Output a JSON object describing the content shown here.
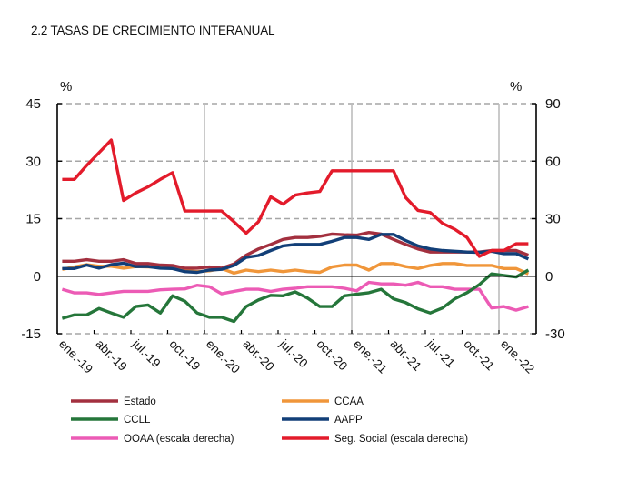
{
  "title": "2.2 TASAS  DE CRECIMIENTO INTERANUAL",
  "chart_data": {
    "type": "line",
    "title": "2.2 TASAS  DE CRECIMIENTO INTERANUAL",
    "left_unit": "%",
    "right_unit": "%",
    "ylim_left": [
      -15,
      45
    ],
    "ylim_right": [
      -30,
      90
    ],
    "yticks_left": [
      "45",
      "30",
      "15",
      "0",
      "-15"
    ],
    "yticks_right": [
      "90",
      "60",
      "30",
      "0",
      "-30"
    ],
    "grid": "horizontal dashed; vertical solid at each January",
    "legend_position": "bottom",
    "x_tick_labels": [
      "ene.-19",
      "abr.-19",
      "jul.-19",
      "oct.-19",
      "ene.-20",
      "abr.-20",
      "jul.-20",
      "oct.-20",
      "ene.-21",
      "abr.-21",
      "jul.-21",
      "oct.-21",
      "ene.-22"
    ],
    "x_start": "ene.-19",
    "x_frequency": "monthly",
    "series": [
      {
        "name": "Estado",
        "axis": "left",
        "color": "#a3303f",
        "values": [
          3.9,
          3.9,
          4.3,
          3.9,
          3.9,
          4.3,
          3.3,
          3.3,
          2.9,
          2.8,
          2.1,
          2.1,
          2.4,
          2.1,
          3.2,
          5.5,
          7.1,
          8.3,
          9.6,
          10.1,
          10.1,
          10.4,
          11.0,
          10.8,
          10.7,
          11.4,
          11.0,
          9.6,
          8.3,
          7.1,
          6.3,
          6.3,
          6.3,
          6.3,
          6.3,
          6.7,
          6.7,
          6.7,
          5.5
        ]
      },
      {
        "name": "CCAA",
        "axis": "left",
        "color": "#f0963a",
        "values": [
          1.8,
          2.4,
          3.0,
          2.6,
          2.6,
          2.1,
          2.5,
          2.4,
          2.4,
          2.0,
          1.5,
          1.2,
          1.4,
          2.0,
          0.8,
          1.6,
          1.2,
          1.6,
          1.2,
          1.6,
          1.2,
          1.0,
          2.4,
          2.9,
          2.9,
          1.6,
          3.3,
          3.3,
          2.5,
          2.0,
          2.8,
          3.3,
          3.3,
          2.8,
          2.8,
          2.8,
          2.0,
          2.0,
          0.6
        ]
      },
      {
        "name": "CCLL",
        "axis": "left",
        "color": "#25763a",
        "values": [
          -11.0,
          -10.1,
          -10.1,
          -8.4,
          -9.6,
          -10.7,
          -7.9,
          -7.5,
          -9.6,
          -5.1,
          -6.5,
          -9.6,
          -10.7,
          -10.7,
          -11.8,
          -7.9,
          -6.2,
          -5.0,
          -5.1,
          -4.1,
          -5.7,
          -7.9,
          -7.9,
          -5.1,
          -4.7,
          -4.3,
          -3.4,
          -5.9,
          -6.9,
          -8.5,
          -9.6,
          -8.3,
          -5.9,
          -4.3,
          -2.2,
          0.6,
          0.2,
          -0.2,
          1.6
        ]
      },
      {
        "name": "AAPP",
        "axis": "left",
        "color": "#123f78",
        "values": [
          2.0,
          2.0,
          2.9,
          2.1,
          3.0,
          3.4,
          2.5,
          2.5,
          2.1,
          2.0,
          1.2,
          1.0,
          1.6,
          1.8,
          2.8,
          4.9,
          5.4,
          6.7,
          7.9,
          8.3,
          8.3,
          8.3,
          9.1,
          10.1,
          10.1,
          9.6,
          10.9,
          10.9,
          9.3,
          7.9,
          7.1,
          6.7,
          6.5,
          6.3,
          6.2,
          6.5,
          5.9,
          5.9,
          4.5
        ]
      },
      {
        "name": "OOAA (escala derecha)",
        "axis": "right",
        "color": "#ec5bb5",
        "values": [
          -6.8,
          -8.7,
          -8.7,
          -9.5,
          -8.7,
          -7.9,
          -7.9,
          -7.9,
          -7.1,
          -6.8,
          -6.6,
          -4.7,
          -5.5,
          -9.2,
          -7.9,
          -6.8,
          -6.8,
          -7.9,
          -6.8,
          -6.3,
          -5.5,
          -5.5,
          -5.5,
          -6.3,
          -7.6,
          -3.2,
          -4.0,
          -4.0,
          -4.7,
          -3.2,
          -5.5,
          -5.5,
          -6.8,
          -6.8,
          -6.8,
          -16.6,
          -15.8,
          -17.7,
          -15.8
        ]
      },
      {
        "name": "Seg. Social (escala derecha)",
        "axis": "right",
        "color": "#e31b2b",
        "values": [
          50.5,
          50.5,
          57.8,
          64.4,
          71.0,
          39.5,
          43.4,
          46.6,
          50.5,
          54.0,
          34.0,
          34.0,
          34.0,
          34.0,
          28.4,
          22.4,
          28.4,
          41.4,
          37.6,
          42.3,
          43.4,
          44.2,
          55.0,
          55.0,
          55.0,
          55.0,
          55.0,
          55.0,
          41.0,
          34.3,
          33.2,
          27.6,
          24.5,
          20.2,
          10.3,
          13.4,
          13.4,
          16.9,
          16.9
        ]
      }
    ]
  }
}
